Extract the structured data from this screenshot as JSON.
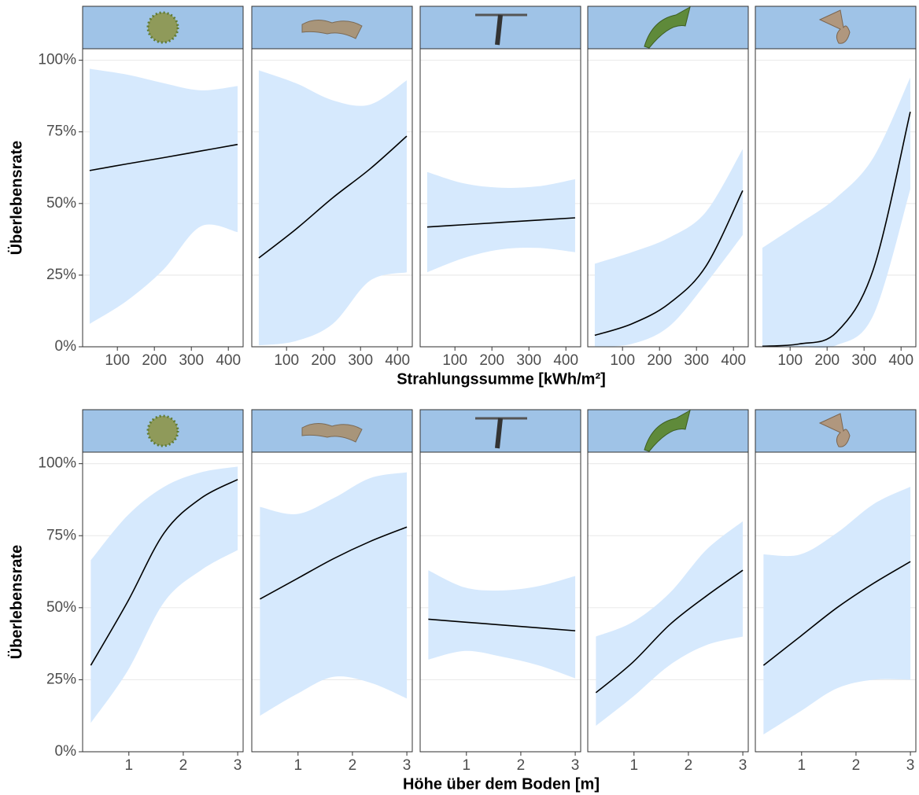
{
  "chart_data": [
    {
      "type": "line",
      "x_label": "Strahlungssumme [kWh/m²]",
      "y_label": "Überlebensrate",
      "xlim": [
        6,
        440
      ],
      "xticks": [
        100,
        200,
        300,
        400
      ],
      "ylim": [
        0,
        104
      ],
      "yticks": [
        {
          "value": 0,
          "label": "0%"
        },
        {
          "value": 25,
          "label": "25%"
        },
        {
          "value": 50,
          "label": "50%"
        },
        {
          "value": 75,
          "label": "75%"
        },
        {
          "value": 100,
          "label": "100%"
        }
      ],
      "grid": true,
      "line_color": "#000000",
      "ribbon_color": "#d6e9fd",
      "strip_color": "#9fc3e7",
      "panels": [
        {
          "x": [
            25,
            125,
            225,
            325,
            425
          ],
          "values": [
            61.5,
            63.8,
            66.0,
            68.3,
            70.6
          ],
          "upper": [
            97,
            95,
            92,
            89.5,
            91
          ],
          "lower": [
            8,
            16,
            27,
            42,
            40
          ]
        },
        {
          "x": [
            25,
            125,
            225,
            325,
            425
          ],
          "values": [
            31,
            41,
            52,
            62,
            73.5
          ],
          "upper": [
            96.5,
            92,
            86,
            84.5,
            93
          ],
          "lower": [
            0.5,
            2,
            8,
            23,
            26
          ]
        },
        {
          "x": [
            25,
            125,
            225,
            325,
            425
          ],
          "values": [
            41.8,
            42.6,
            43.4,
            44.2,
            45
          ],
          "upper": [
            61,
            57,
            55.5,
            56,
            58.5
          ],
          "lower": [
            26,
            31,
            34,
            34.5,
            33
          ]
        },
        {
          "x": [
            25,
            125,
            225,
            325,
            425
          ],
          "values": [
            4,
            8,
            15,
            28,
            54.5
          ],
          "upper": [
            29,
            33,
            38,
            47,
            69
          ],
          "lower": [
            0,
            1,
            7,
            22,
            39
          ]
        },
        {
          "x": [
            25,
            125,
            225,
            325,
            425
          ],
          "values": [
            0.2,
            1,
            5,
            27,
            82
          ],
          "upper": [
            34.5,
            43,
            52,
            66,
            94
          ],
          "lower": [
            0,
            0,
            0.5,
            11,
            55
          ]
        }
      ]
    },
    {
      "type": "line",
      "x_label": "Höhe über dem Boden [m]",
      "y_label": "Überlebensrate",
      "xlim": [
        0.15,
        3.1
      ],
      "xticks": [
        1,
        2,
        3
      ],
      "ylim": [
        0,
        104
      ],
      "yticks": [
        {
          "value": 0,
          "label": "0%"
        },
        {
          "value": 25,
          "label": "25%"
        },
        {
          "value": 50,
          "label": "50%"
        },
        {
          "value": 75,
          "label": "75%"
        },
        {
          "value": 100,
          "label": "100%"
        }
      ],
      "grid": true,
      "line_color": "#000000",
      "ribbon_color": "#d6e9fd",
      "strip_color": "#9fc3e7",
      "panels": [
        {
          "x": [
            0.3,
            0.975,
            1.65,
            2.325,
            3.0
          ],
          "values": [
            30,
            52,
            76,
            88,
            94.5
          ],
          "upper": [
            66.5,
            82,
            92,
            97,
            99
          ],
          "lower": [
            10,
            28,
            52,
            63,
            70
          ]
        },
        {
          "x": [
            0.3,
            0.975,
            1.65,
            2.325,
            3.0
          ],
          "values": [
            53,
            60,
            67,
            73,
            78
          ],
          "upper": [
            85,
            82.5,
            88,
            95,
            97
          ],
          "lower": [
            12.5,
            20,
            26,
            24,
            18.5
          ]
        },
        {
          "x": [
            0.3,
            0.975,
            1.65,
            2.325,
            3.0
          ],
          "values": [
            46,
            45,
            44,
            43,
            42
          ],
          "upper": [
            63,
            57,
            56,
            57.5,
            61
          ],
          "lower": [
            32,
            35,
            33,
            30,
            25.5
          ]
        },
        {
          "x": [
            0.3,
            0.975,
            1.65,
            2.325,
            3.0
          ],
          "values": [
            20.5,
            31,
            44,
            54,
            63
          ],
          "upper": [
            40,
            45,
            55,
            70,
            80
          ],
          "lower": [
            9,
            19,
            30,
            37,
            40
          ]
        },
        {
          "x": [
            0.3,
            0.975,
            1.65,
            2.325,
            3.0
          ],
          "values": [
            30,
            40,
            50,
            58.5,
            66
          ],
          "upper": [
            68.5,
            68.5,
            76,
            86,
            92
          ],
          "lower": [
            6,
            14,
            22,
            25,
            25
          ]
        }
      ]
    }
  ]
}
